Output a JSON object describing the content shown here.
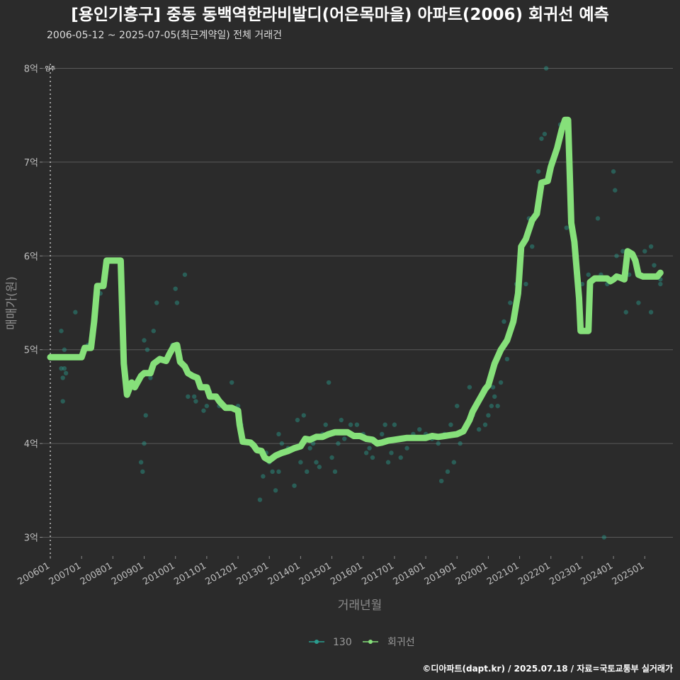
{
  "chart_data": {
    "type": "line",
    "title": "[용인기흥구] 중동 동백역한라비발디(어은목마을) 아파트(2006) 회귀선 예측",
    "subtitle": "2006-05-12 ~ 2025-07-05(최근계약일) 전체 거래건",
    "xlabel": "거래년월",
    "ylabel": "매매가(원)",
    "ylim": [
      2.8,
      8.2
    ],
    "y_ticks": [
      {
        "value": 3,
        "label": "3억"
      },
      {
        "value": 4,
        "label": "4억"
      },
      {
        "value": 5,
        "label": "5억"
      },
      {
        "value": 6,
        "label": "6억"
      },
      {
        "value": 7,
        "label": "7억"
      },
      {
        "value": 8,
        "label": "8억"
      }
    ],
    "xlim": [
      2005.75,
      2025.9
    ],
    "x_ticks": [
      {
        "value": 2006.0,
        "label": "200601"
      },
      {
        "value": 2007.0,
        "label": "200701"
      },
      {
        "value": 2008.0,
        "label": "200801"
      },
      {
        "value": 2009.0,
        "label": "200901"
      },
      {
        "value": 2010.0,
        "label": "201001"
      },
      {
        "value": 2011.0,
        "label": "201101"
      },
      {
        "value": 2012.0,
        "label": "201201"
      },
      {
        "value": 2013.0,
        "label": "201301"
      },
      {
        "value": 2014.0,
        "label": "201401"
      },
      {
        "value": 2015.0,
        "label": "201501"
      },
      {
        "value": 2016.0,
        "label": "201601"
      },
      {
        "value": 2017.0,
        "label": "201701"
      },
      {
        "value": 2018.0,
        "label": "201801"
      },
      {
        "value": 2019.0,
        "label": "201901"
      },
      {
        "value": 2020.0,
        "label": "202001"
      },
      {
        "value": 2021.0,
        "label": "202101"
      },
      {
        "value": 2022.0,
        "label": "202201"
      },
      {
        "value": 2023.0,
        "label": "202301"
      },
      {
        "value": 2024.0,
        "label": "202401"
      },
      {
        "value": 2025.0,
        "label": "202501"
      }
    ],
    "annotation": {
      "label": "입주",
      "x": 2006.0
    },
    "colors": {
      "scatter": "#2a9d8f",
      "line": "#86e07a"
    },
    "legend": [
      {
        "name": "130",
        "kind": "scatter"
      },
      {
        "name": "회귀선",
        "kind": "line"
      }
    ],
    "series": [
      {
        "name": "130",
        "kind": "scatter",
        "points": [
          [
            2006.35,
            5.2
          ],
          [
            2006.35,
            4.8
          ],
          [
            2006.4,
            4.7
          ],
          [
            2006.45,
            4.8
          ],
          [
            2006.5,
            4.75
          ],
          [
            2006.4,
            4.45
          ],
          [
            2006.45,
            5.0
          ],
          [
            2006.8,
            5.4
          ],
          [
            2007.2,
            5.05
          ],
          [
            2007.6,
            5.6
          ],
          [
            2008.9,
            3.8
          ],
          [
            2008.95,
            3.7
          ],
          [
            2009.0,
            4.0
          ],
          [
            2009.05,
            4.3
          ],
          [
            2009.0,
            5.1
          ],
          [
            2009.1,
            5.0
          ],
          [
            2009.2,
            4.7
          ],
          [
            2009.3,
            5.2
          ],
          [
            2009.4,
            5.5
          ],
          [
            2009.5,
            4.9
          ],
          [
            2009.9,
            5.05
          ],
          [
            2010.0,
            5.65
          ],
          [
            2010.05,
            5.5
          ],
          [
            2010.3,
            5.8
          ],
          [
            2010.4,
            4.5
          ],
          [
            2010.6,
            4.5
          ],
          [
            2010.65,
            4.45
          ],
          [
            2010.9,
            4.35
          ],
          [
            2011.0,
            4.4
          ],
          [
            2011.1,
            4.55
          ],
          [
            2011.4,
            4.4
          ],
          [
            2011.8,
            4.65
          ],
          [
            2012.0,
            4.4
          ],
          [
            2012.1,
            4.2
          ],
          [
            2012.4,
            4.0
          ],
          [
            2012.7,
            3.4
          ],
          [
            2012.8,
            3.65
          ],
          [
            2012.9,
            3.9
          ],
          [
            2013.0,
            3.8
          ],
          [
            2013.1,
            3.7
          ],
          [
            2013.2,
            3.5
          ],
          [
            2013.3,
            4.1
          ],
          [
            2013.3,
            3.7
          ],
          [
            2013.4,
            4.0
          ],
          [
            2013.5,
            3.9
          ],
          [
            2013.6,
            3.95
          ],
          [
            2013.8,
            3.55
          ],
          [
            2013.9,
            4.25
          ],
          [
            2014.0,
            3.8
          ],
          [
            2014.1,
            4.3
          ],
          [
            2014.2,
            3.7
          ],
          [
            2014.3,
            3.95
          ],
          [
            2014.4,
            4.0
          ],
          [
            2014.5,
            3.8
          ],
          [
            2014.6,
            3.75
          ],
          [
            2014.7,
            4.1
          ],
          [
            2014.8,
            4.2
          ],
          [
            2014.9,
            4.65
          ],
          [
            2015.0,
            3.85
          ],
          [
            2015.1,
            3.7
          ],
          [
            2015.2,
            4.0
          ],
          [
            2015.3,
            4.25
          ],
          [
            2015.4,
            4.05
          ],
          [
            2015.6,
            4.2
          ],
          [
            2015.8,
            4.2
          ],
          [
            2016.0,
            4.1
          ],
          [
            2016.1,
            3.9
          ],
          [
            2016.2,
            3.95
          ],
          [
            2016.3,
            3.85
          ],
          [
            2016.5,
            4.0
          ],
          [
            2016.6,
            4.1
          ],
          [
            2016.7,
            4.2
          ],
          [
            2016.8,
            3.8
          ],
          [
            2016.9,
            3.9
          ],
          [
            2017.0,
            4.2
          ],
          [
            2017.2,
            3.85
          ],
          [
            2017.4,
            3.95
          ],
          [
            2017.6,
            4.1
          ],
          [
            2017.8,
            4.15
          ],
          [
            2018.0,
            4.1
          ],
          [
            2018.2,
            4.05
          ],
          [
            2018.4,
            4.0
          ],
          [
            2018.5,
            3.6
          ],
          [
            2018.6,
            4.1
          ],
          [
            2018.7,
            3.7
          ],
          [
            2018.8,
            4.2
          ],
          [
            2018.9,
            3.8
          ],
          [
            2019.0,
            4.4
          ],
          [
            2019.1,
            4.0
          ],
          [
            2019.4,
            4.6
          ],
          [
            2019.5,
            4.3
          ],
          [
            2019.7,
            4.15
          ],
          [
            2019.9,
            4.2
          ],
          [
            2020.0,
            4.3
          ],
          [
            2020.1,
            4.4
          ],
          [
            2020.15,
            4.6
          ],
          [
            2020.2,
            4.5
          ],
          [
            2020.3,
            4.4
          ],
          [
            2020.4,
            4.65
          ],
          [
            2020.5,
            5.3
          ],
          [
            2020.6,
            4.9
          ],
          [
            2020.7,
            5.5
          ],
          [
            2020.9,
            5.7
          ],
          [
            2021.0,
            6.0
          ],
          [
            2021.2,
            5.7
          ],
          [
            2021.3,
            6.4
          ],
          [
            2021.4,
            6.1
          ],
          [
            2021.6,
            6.9
          ],
          [
            2021.7,
            7.25
          ],
          [
            2021.8,
            7.3
          ],
          [
            2021.85,
            8.0
          ],
          [
            2022.0,
            7.0
          ],
          [
            2022.3,
            7.4
          ],
          [
            2022.5,
            6.3
          ],
          [
            2022.7,
            6.2
          ],
          [
            2023.0,
            5.7
          ],
          [
            2023.2,
            5.8
          ],
          [
            2023.5,
            6.4
          ],
          [
            2023.6,
            5.8
          ],
          [
            2023.7,
            3.0
          ],
          [
            2023.8,
            5.7
          ],
          [
            2024.0,
            6.9
          ],
          [
            2024.05,
            6.7
          ],
          [
            2024.1,
            6.0
          ],
          [
            2024.3,
            6.05
          ],
          [
            2024.4,
            5.4
          ],
          [
            2024.5,
            5.8
          ],
          [
            2024.8,
            5.5
          ],
          [
            2025.0,
            6.05
          ],
          [
            2025.2,
            6.1
          ],
          [
            2025.3,
            5.9
          ],
          [
            2025.5,
            5.75
          ],
          [
            2025.5,
            5.7
          ],
          [
            2025.2,
            5.4
          ]
        ]
      },
      {
        "name": "회귀선",
        "kind": "line",
        "points": [
          [
            2006.0,
            4.92
          ],
          [
            2006.2,
            4.92
          ],
          [
            2006.5,
            4.92
          ],
          [
            2006.8,
            4.92
          ],
          [
            2007.0,
            4.92
          ],
          [
            2007.1,
            5.02
          ],
          [
            2007.3,
            5.02
          ],
          [
            2007.4,
            5.3
          ],
          [
            2007.5,
            5.68
          ],
          [
            2007.7,
            5.68
          ],
          [
            2007.8,
            5.95
          ],
          [
            2008.0,
            5.95
          ],
          [
            2008.1,
            5.95
          ],
          [
            2008.25,
            5.95
          ],
          [
            2008.35,
            4.85
          ],
          [
            2008.45,
            4.52
          ],
          [
            2008.6,
            4.65
          ],
          [
            2008.7,
            4.6
          ],
          [
            2008.9,
            4.72
          ],
          [
            2009.0,
            4.75
          ],
          [
            2009.2,
            4.75
          ],
          [
            2009.3,
            4.85
          ],
          [
            2009.5,
            4.9
          ],
          [
            2009.7,
            4.88
          ],
          [
            2009.8,
            4.95
          ],
          [
            2009.95,
            5.04
          ],
          [
            2010.05,
            5.05
          ],
          [
            2010.15,
            4.87
          ],
          [
            2010.3,
            4.82
          ],
          [
            2010.4,
            4.75
          ],
          [
            2010.55,
            4.72
          ],
          [
            2010.7,
            4.7
          ],
          [
            2010.8,
            4.6
          ],
          [
            2011.0,
            4.6
          ],
          [
            2011.1,
            4.5
          ],
          [
            2011.3,
            4.5
          ],
          [
            2011.4,
            4.45
          ],
          [
            2011.6,
            4.38
          ],
          [
            2011.8,
            4.38
          ],
          [
            2012.0,
            4.35
          ],
          [
            2012.05,
            4.2
          ],
          [
            2012.15,
            4.02
          ],
          [
            2012.4,
            4.01
          ],
          [
            2012.5,
            3.98
          ],
          [
            2012.6,
            3.93
          ],
          [
            2012.75,
            3.92
          ],
          [
            2012.85,
            3.85
          ],
          [
            2013.0,
            3.82
          ],
          [
            2013.2,
            3.87
          ],
          [
            2013.4,
            3.9
          ],
          [
            2013.6,
            3.92
          ],
          [
            2013.8,
            3.95
          ],
          [
            2014.0,
            3.97
          ],
          [
            2014.15,
            4.05
          ],
          [
            2014.3,
            4.04
          ],
          [
            2014.5,
            4.07
          ],
          [
            2014.7,
            4.07
          ],
          [
            2014.9,
            4.1
          ],
          [
            2015.1,
            4.12
          ],
          [
            2015.3,
            4.12
          ],
          [
            2015.5,
            4.12
          ],
          [
            2015.7,
            4.08
          ],
          [
            2015.9,
            4.08
          ],
          [
            2016.1,
            4.05
          ],
          [
            2016.3,
            4.04
          ],
          [
            2016.45,
            4.0
          ],
          [
            2016.6,
            4.01
          ],
          [
            2016.8,
            4.03
          ],
          [
            2017.0,
            4.04
          ],
          [
            2017.2,
            4.05
          ],
          [
            2017.4,
            4.06
          ],
          [
            2017.6,
            4.06
          ],
          [
            2017.8,
            4.06
          ],
          [
            2018.0,
            4.06
          ],
          [
            2018.2,
            4.08
          ],
          [
            2018.4,
            4.07
          ],
          [
            2018.6,
            4.08
          ],
          [
            2018.8,
            4.09
          ],
          [
            2019.0,
            4.1
          ],
          [
            2019.2,
            4.13
          ],
          [
            2019.4,
            4.25
          ],
          [
            2019.5,
            4.34
          ],
          [
            2019.6,
            4.4
          ],
          [
            2019.8,
            4.52
          ],
          [
            2019.9,
            4.58
          ],
          [
            2020.0,
            4.62
          ],
          [
            2020.2,
            4.85
          ],
          [
            2020.4,
            5.0
          ],
          [
            2020.6,
            5.1
          ],
          [
            2020.8,
            5.3
          ],
          [
            2020.95,
            5.6
          ],
          [
            2021.05,
            6.1
          ],
          [
            2021.2,
            6.18
          ],
          [
            2021.4,
            6.38
          ],
          [
            2021.55,
            6.45
          ],
          [
            2021.7,
            6.78
          ],
          [
            2021.9,
            6.8
          ],
          [
            2022.0,
            6.95
          ],
          [
            2022.2,
            7.15
          ],
          [
            2022.35,
            7.35
          ],
          [
            2022.45,
            7.45
          ],
          [
            2022.55,
            7.45
          ],
          [
            2022.65,
            6.35
          ],
          [
            2022.75,
            6.15
          ],
          [
            2022.9,
            5.55
          ],
          [
            2022.95,
            5.2
          ],
          [
            2023.1,
            5.2
          ],
          [
            2023.2,
            5.2
          ],
          [
            2023.25,
            5.72
          ],
          [
            2023.4,
            5.76
          ],
          [
            2023.6,
            5.76
          ],
          [
            2023.8,
            5.76
          ],
          [
            2023.9,
            5.73
          ],
          [
            2024.0,
            5.75
          ],
          [
            2024.1,
            5.78
          ],
          [
            2024.2,
            5.77
          ],
          [
            2024.35,
            5.75
          ],
          [
            2024.45,
            6.05
          ],
          [
            2024.6,
            6.02
          ],
          [
            2024.7,
            5.95
          ],
          [
            2024.8,
            5.8
          ],
          [
            2024.95,
            5.78
          ],
          [
            2025.2,
            5.78
          ],
          [
            2025.4,
            5.78
          ],
          [
            2025.5,
            5.82
          ]
        ]
      }
    ]
  },
  "caption": "©디아파트(dapt.kr) / 2025.07.18 / 자료=국토교통부 실거래가"
}
